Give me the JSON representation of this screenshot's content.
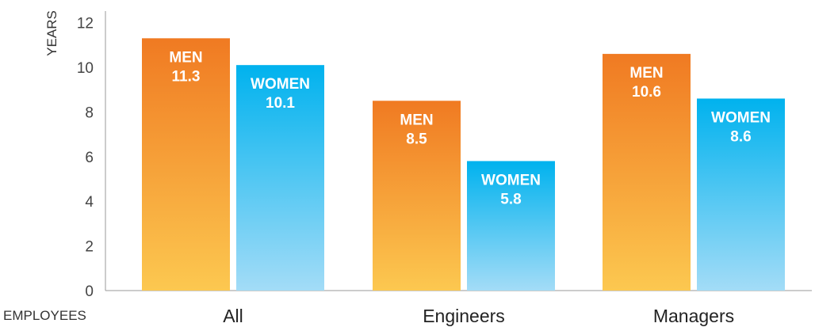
{
  "chart_data": {
    "type": "bar",
    "ylabel": "YEARS",
    "xlabel": "EMPLOYEES",
    "ylim": [
      0,
      12
    ],
    "yticks": [
      "0",
      "2",
      "4",
      "6",
      "8",
      "10",
      "12"
    ],
    "categories": [
      "All",
      "Engineers",
      "Managers"
    ],
    "series": [
      {
        "name": "MEN",
        "values": [
          11.3,
          8.5,
          10.6
        ],
        "value_labels": [
          "11.3",
          "8.5",
          "10.6"
        ],
        "color_top": "#f07a22",
        "color_bottom": "#fcc850"
      },
      {
        "name": "WOMEN",
        "values": [
          10.1,
          5.8,
          8.6
        ],
        "value_labels": [
          "10.1",
          "5.8",
          "8.6"
        ],
        "color_top": "#00b2ee",
        "color_bottom": "#a3dcf7"
      }
    ],
    "grid": false,
    "legend": "none"
  }
}
